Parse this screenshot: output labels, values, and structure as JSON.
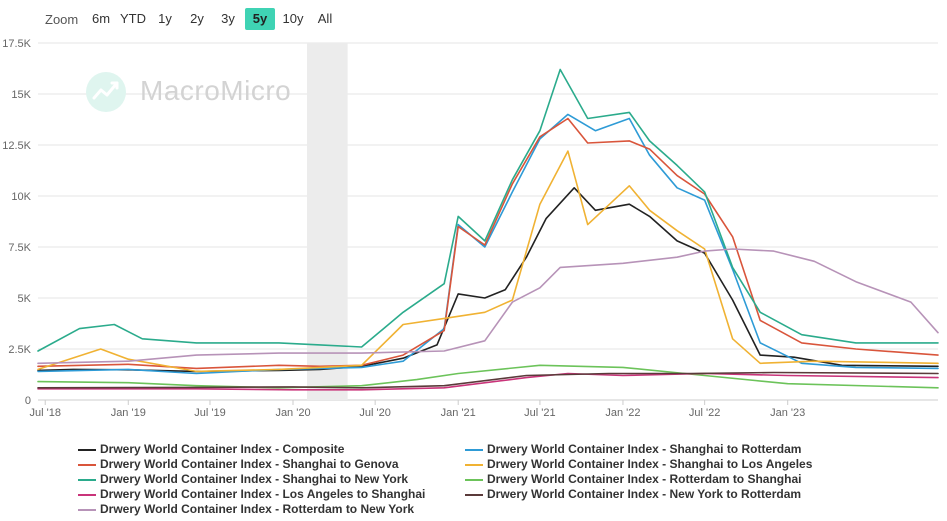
{
  "zoom": {
    "label": "Zoom",
    "options": [
      "6m",
      "YTD",
      "1y",
      "2y",
      "3y",
      "5y",
      "10y",
      "All"
    ],
    "active": "5y",
    "active_color": "#3fd3b4"
  },
  "watermark": {
    "text": "MacroMicro",
    "icon": "chart-logo-icon"
  },
  "chart_data": {
    "type": "line",
    "title": "",
    "xlabel": "",
    "ylabel": "",
    "x_start": "2018-06-15",
    "x_end": "2023-11-30",
    "x_ticks": [
      "Jul '18",
      "Jan '19",
      "Jul '19",
      "Jan '20",
      "Jul '20",
      "Jan '21",
      "Jul '21",
      "Jan '22",
      "Jul '22",
      "Jan '23"
    ],
    "x_tick_dates": [
      "2018-07-01",
      "2019-01-01",
      "2019-07-01",
      "2020-01-01",
      "2020-07-01",
      "2021-01-01",
      "2021-07-01",
      "2022-01-01",
      "2022-07-01",
      "2023-01-01"
    ],
    "ylim": [
      0,
      17500
    ],
    "y_ticks": [
      0,
      2500,
      5000,
      7500,
      10000,
      12500,
      15000,
      17500
    ],
    "y_tick_labels": [
      "0",
      "2.5K",
      "5K",
      "7.5K",
      "10K",
      "12.5K",
      "15K",
      "17.5K"
    ],
    "shaded_range": [
      "2020-02-01",
      "2020-05-01"
    ],
    "shaded_color": "#ececec",
    "grid": true,
    "legend_position": "bottom",
    "series": [
      {
        "name": "Drwery World Container Index - Composite",
        "color": "#222222",
        "points": [
          [
            "2018-06-15",
            1450
          ],
          [
            "2018-09-01",
            1500
          ],
          [
            "2019-01-01",
            1480
          ],
          [
            "2019-06-01",
            1400
          ],
          [
            "2019-12-01",
            1450
          ],
          [
            "2020-03-01",
            1500
          ],
          [
            "2020-06-01",
            1650
          ],
          [
            "2020-09-01",
            2050
          ],
          [
            "2020-11-15",
            2700
          ],
          [
            "2021-01-01",
            5200
          ],
          [
            "2021-03-01",
            5000
          ],
          [
            "2021-04-15",
            5400
          ],
          [
            "2021-06-01",
            7000
          ],
          [
            "2021-07-15",
            8900
          ],
          [
            "2021-09-15",
            10400
          ],
          [
            "2021-11-01",
            9300
          ],
          [
            "2022-01-15",
            9600
          ],
          [
            "2022-03-01",
            9000
          ],
          [
            "2022-05-01",
            7800
          ],
          [
            "2022-07-01",
            7200
          ],
          [
            "2022-09-01",
            4900
          ],
          [
            "2022-11-01",
            2200
          ],
          [
            "2023-01-15",
            2100
          ],
          [
            "2023-05-01",
            1700
          ],
          [
            "2023-11-30",
            1650
          ]
        ]
      },
      {
        "name": "Drwery World Container Index - Shanghai to Rotterdam",
        "color": "#2e9bd6",
        "points": [
          [
            "2018-06-15",
            1400
          ],
          [
            "2019-01-01",
            1500
          ],
          [
            "2019-06-01",
            1300
          ],
          [
            "2019-12-01",
            1500
          ],
          [
            "2020-03-01",
            1550
          ],
          [
            "2020-06-01",
            1600
          ],
          [
            "2020-09-01",
            1900
          ],
          [
            "2020-12-01",
            3500
          ],
          [
            "2021-01-01",
            8600
          ],
          [
            "2021-03-01",
            7500
          ],
          [
            "2021-05-01",
            10200
          ],
          [
            "2021-07-01",
            12800
          ],
          [
            "2021-09-01",
            14000
          ],
          [
            "2021-11-01",
            13200
          ],
          [
            "2022-01-15",
            13800
          ],
          [
            "2022-03-01",
            12000
          ],
          [
            "2022-05-01",
            10400
          ],
          [
            "2022-07-01",
            9800
          ],
          [
            "2022-09-01",
            6400
          ],
          [
            "2022-11-01",
            2800
          ],
          [
            "2023-02-01",
            1800
          ],
          [
            "2023-06-01",
            1600
          ],
          [
            "2023-11-30",
            1550
          ]
        ]
      },
      {
        "name": "Drwery World Container Index - Shanghai to Genova",
        "color": "#d9553b",
        "points": [
          [
            "2018-06-15",
            1650
          ],
          [
            "2019-01-01",
            1750
          ],
          [
            "2019-06-01",
            1550
          ],
          [
            "2019-12-01",
            1700
          ],
          [
            "2020-03-01",
            1650
          ],
          [
            "2020-06-01",
            1700
          ],
          [
            "2020-09-01",
            2200
          ],
          [
            "2020-12-01",
            3400
          ],
          [
            "2021-01-01",
            8500
          ],
          [
            "2021-03-01",
            7600
          ],
          [
            "2021-05-01",
            10600
          ],
          [
            "2021-07-01",
            12900
          ],
          [
            "2021-09-01",
            13800
          ],
          [
            "2021-10-15",
            12600
          ],
          [
            "2022-01-15",
            12700
          ],
          [
            "2022-03-01",
            12300
          ],
          [
            "2022-05-01",
            11000
          ],
          [
            "2022-07-01",
            10100
          ],
          [
            "2022-09-01",
            8000
          ],
          [
            "2022-11-01",
            3900
          ],
          [
            "2023-02-01",
            2800
          ],
          [
            "2023-06-01",
            2500
          ],
          [
            "2023-11-30",
            2200
          ]
        ]
      },
      {
        "name": "Drwery World Container Index - Shanghai to Los Angeles",
        "color": "#f0b233",
        "points": [
          [
            "2018-06-15",
            1500
          ],
          [
            "2018-11-01",
            2500
          ],
          [
            "2019-01-01",
            2000
          ],
          [
            "2019-06-01",
            1400
          ],
          [
            "2019-12-01",
            1500
          ],
          [
            "2020-03-01",
            1600
          ],
          [
            "2020-06-01",
            1700
          ],
          [
            "2020-09-01",
            3700
          ],
          [
            "2020-12-01",
            4000
          ],
          [
            "2021-03-01",
            4300
          ],
          [
            "2021-05-01",
            4900
          ],
          [
            "2021-07-01",
            9600
          ],
          [
            "2021-09-01",
            12200
          ],
          [
            "2021-10-15",
            8600
          ],
          [
            "2022-01-15",
            10500
          ],
          [
            "2022-03-01",
            9300
          ],
          [
            "2022-05-01",
            8300
          ],
          [
            "2022-07-01",
            7400
          ],
          [
            "2022-09-01",
            3000
          ],
          [
            "2022-11-01",
            1800
          ],
          [
            "2023-03-01",
            1900
          ],
          [
            "2023-11-30",
            1800
          ]
        ]
      },
      {
        "name": "Drwery World Container Index - Shanghai to New York",
        "color": "#2bab8c",
        "points": [
          [
            "2018-06-15",
            2400
          ],
          [
            "2018-09-15",
            3500
          ],
          [
            "2018-12-01",
            3700
          ],
          [
            "2019-02-01",
            3000
          ],
          [
            "2019-06-01",
            2800
          ],
          [
            "2019-12-01",
            2800
          ],
          [
            "2020-03-01",
            2700
          ],
          [
            "2020-06-01",
            2600
          ],
          [
            "2020-09-01",
            4300
          ],
          [
            "2020-12-01",
            5700
          ],
          [
            "2021-01-01",
            9000
          ],
          [
            "2021-03-01",
            7800
          ],
          [
            "2021-05-01",
            10800
          ],
          [
            "2021-07-01",
            13200
          ],
          [
            "2021-08-15",
            16200
          ],
          [
            "2021-10-15",
            13800
          ],
          [
            "2022-01-15",
            14100
          ],
          [
            "2022-03-01",
            12700
          ],
          [
            "2022-05-01",
            11500
          ],
          [
            "2022-07-01",
            10200
          ],
          [
            "2022-09-01",
            6500
          ],
          [
            "2022-11-01",
            4300
          ],
          [
            "2023-02-01",
            3200
          ],
          [
            "2023-06-01",
            2800
          ],
          [
            "2023-11-30",
            2800
          ]
        ]
      },
      {
        "name": "Drwery World Container Index - Rotterdam to Shanghai",
        "color": "#6cc35a",
        "points": [
          [
            "2018-06-15",
            900
          ],
          [
            "2019-01-01",
            850
          ],
          [
            "2019-06-01",
            700
          ],
          [
            "2019-12-01",
            600
          ],
          [
            "2020-06-01",
            700
          ],
          [
            "2020-10-01",
            1000
          ],
          [
            "2021-01-01",
            1300
          ],
          [
            "2021-07-01",
            1700
          ],
          [
            "2022-01-01",
            1600
          ],
          [
            "2022-07-01",
            1200
          ],
          [
            "2023-01-01",
            800
          ],
          [
            "2023-11-30",
            600
          ]
        ]
      },
      {
        "name": "Drwery World Container Index - Los Angeles to Shanghai",
        "color": "#c9347a",
        "points": [
          [
            "2018-06-15",
            550
          ],
          [
            "2019-06-01",
            550
          ],
          [
            "2020-01-01",
            500
          ],
          [
            "2020-06-01",
            500
          ],
          [
            "2020-12-01",
            600
          ],
          [
            "2021-06-01",
            1100
          ],
          [
            "2021-09-01",
            1300
          ],
          [
            "2022-01-01",
            1200
          ],
          [
            "2022-07-01",
            1300
          ],
          [
            "2023-01-01",
            1200
          ],
          [
            "2023-11-30",
            1100
          ]
        ]
      },
      {
        "name": "Drwery World Container Index - New York to Rotterdam",
        "color": "#5a3a3a",
        "points": [
          [
            "2018-06-15",
            600
          ],
          [
            "2019-06-01",
            620
          ],
          [
            "2020-01-01",
            640
          ],
          [
            "2020-06-01",
            600
          ],
          [
            "2020-12-01",
            700
          ],
          [
            "2021-06-01",
            1200
          ],
          [
            "2021-12-01",
            1300
          ],
          [
            "2022-06-01",
            1300
          ],
          [
            "2022-12-01",
            1350
          ],
          [
            "2023-11-30",
            1300
          ]
        ]
      },
      {
        "name": "Drwery World Container Index - Rotterdam to New York",
        "color": "#b793b8",
        "points": [
          [
            "2018-06-15",
            1800
          ],
          [
            "2019-01-01",
            1900
          ],
          [
            "2019-06-01",
            2200
          ],
          [
            "2019-12-01",
            2300
          ],
          [
            "2020-06-01",
            2300
          ],
          [
            "2020-12-01",
            2400
          ],
          [
            "2021-03-01",
            2900
          ],
          [
            "2021-05-01",
            4800
          ],
          [
            "2021-07-01",
            5500
          ],
          [
            "2021-08-15",
            6500
          ],
          [
            "2022-01-01",
            6700
          ],
          [
            "2022-05-01",
            7000
          ],
          [
            "2022-07-01",
            7300
          ],
          [
            "2022-09-01",
            7400
          ],
          [
            "2022-12-01",
            7300
          ],
          [
            "2023-03-01",
            6800
          ],
          [
            "2023-06-01",
            5800
          ],
          [
            "2023-10-01",
            4800
          ],
          [
            "2023-11-30",
            3300
          ]
        ]
      }
    ]
  }
}
